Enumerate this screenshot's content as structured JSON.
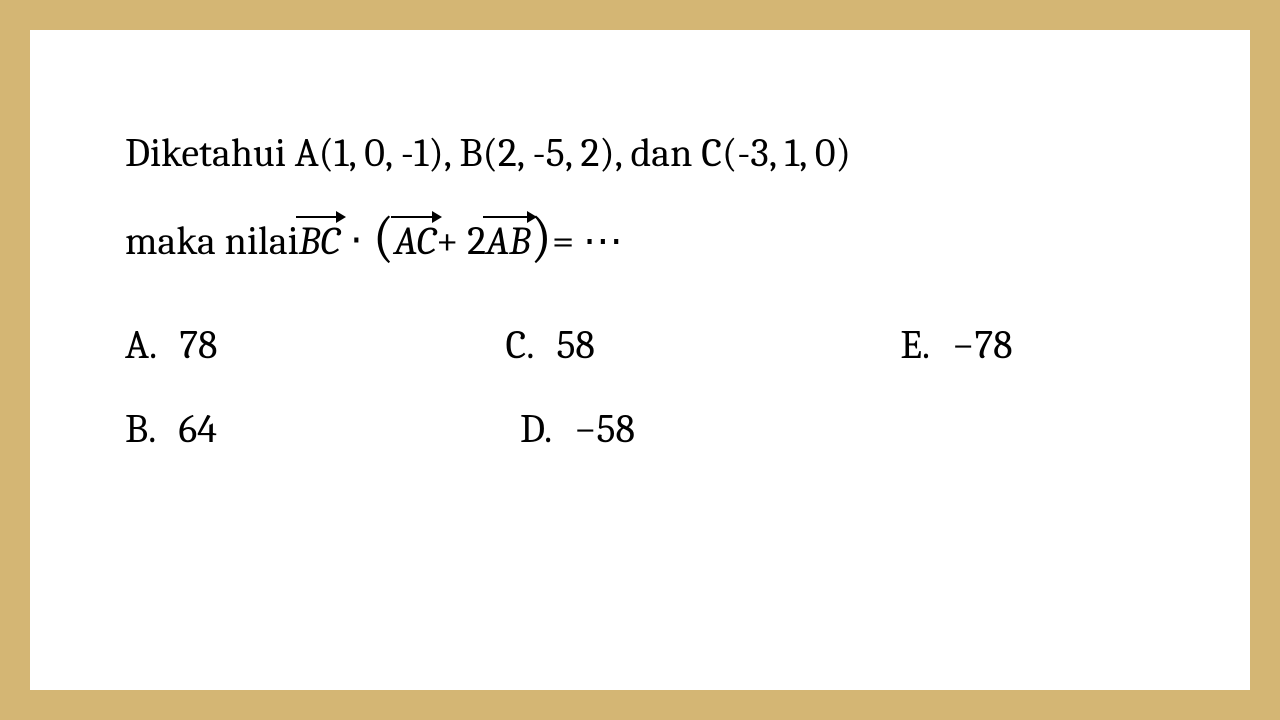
{
  "border_color": "#d4b674",
  "background_color": "#ffffff",
  "text_color": "#000000",
  "font_family": "Cambria, Georgia, serif",
  "question": {
    "line1_prefix": "Diketahui A(1, 0, -1), B(2, -5, 2), dan C(-3, 1, 0)",
    "line2_prefix": "maka nilai ",
    "vec1": "BC",
    "dot": "⋅",
    "lparen": "(",
    "vec2": "AC",
    "plus2": " + 2",
    "vec3": "AB",
    "rparen": ")",
    "equals": " = ⋯"
  },
  "options": {
    "a": {
      "letter": "A.",
      "value": "78"
    },
    "b": {
      "letter": "B.",
      "value": "64"
    },
    "c": {
      "letter": "C.",
      "value": "58"
    },
    "d": {
      "letter": "D.",
      "value": "−58"
    },
    "e": {
      "letter": "E.",
      "value": "−78"
    }
  },
  "fontsize_question": 40,
  "fontsize_options": 40
}
